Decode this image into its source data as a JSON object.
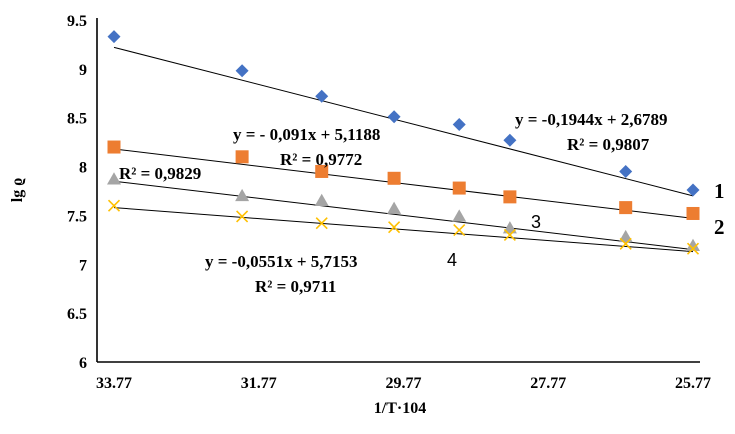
{
  "chart_data": {
    "type": "scatter",
    "xlabel": "1/T·104",
    "ylabel": "lg ϱ",
    "x_reversed": true,
    "xlim": [
      33.77,
      25.77
    ],
    "ylim": [
      6,
      9.5
    ],
    "x_ticks": [
      "33.77",
      "31.77",
      "29.77",
      "27.77",
      "25.77"
    ],
    "y_ticks": [
      "6",
      "6.5",
      "7",
      "7.5",
      "8",
      "8.5",
      "9",
      "9.5"
    ],
    "grid": false,
    "series": [
      {
        "name": "1",
        "marker": "diamond",
        "color": "#4472C4",
        "x": [
          33.77,
          32.0,
          30.9,
          29.9,
          29.0,
          28.3,
          26.7,
          25.77
        ],
        "y": [
          9.33,
          8.98,
          8.72,
          8.51,
          8.43,
          8.27,
          7.95,
          7.76
        ],
        "trend": {
          "y_start": 9.22,
          "y_end": 7.7
        }
      },
      {
        "name": "2",
        "marker": "square",
        "color": "#ED7D31",
        "x": [
          33.77,
          32.0,
          30.9,
          29.9,
          29.0,
          28.3,
          26.7,
          25.77
        ],
        "y": [
          8.2,
          8.1,
          7.95,
          7.88,
          7.78,
          7.69,
          7.58,
          7.52
        ],
        "trend": {
          "y_start": 8.18,
          "y_end": 7.47
        }
      },
      {
        "name": "3",
        "marker": "triangle",
        "color": "#A5A5A5",
        "x": [
          33.77,
          32.0,
          30.9,
          29.9,
          29.0,
          28.3,
          26.7,
          25.77
        ],
        "y": [
          7.87,
          7.7,
          7.65,
          7.57,
          7.49,
          7.37,
          7.28,
          7.19
        ],
        "trend": {
          "y_start": 7.85,
          "y_end": 7.15
        }
      },
      {
        "name": "4",
        "marker": "x",
        "color": "#FFC000",
        "x": [
          33.77,
          32.0,
          30.9,
          29.9,
          29.0,
          28.3,
          26.7,
          25.77
        ],
        "y": [
          7.6,
          7.49,
          7.42,
          7.38,
          7.35,
          7.3,
          7.21,
          7.16
        ],
        "trend": {
          "y_start": 7.58,
          "y_end": 7.13
        }
      }
    ],
    "annotations": {
      "eq1": "y = -0,1944x + 2,6789",
      "r1": "R² = 0,9807",
      "eq2": "y = - 0,091x + 5,1188",
      "r2": "R² = 0,9772",
      "r3": "R² = 0,9829",
      "eq4": "y = -0,0551x + 5,7153",
      "r4": "R² = 0,9711",
      "label1": "1",
      "label2": "2",
      "label3": "3",
      "label4": "4"
    }
  }
}
